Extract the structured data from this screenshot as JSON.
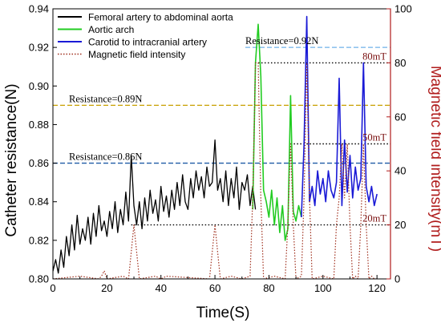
{
  "chart_data": {
    "type": "line",
    "xlabel": "Time(S)",
    "ylabel": "Catheter resistance(N)",
    "y2label": "Magnetic field intensity(mT)",
    "xlim": [
      0,
      125
    ],
    "ylim": [
      0.8,
      0.94
    ],
    "y2lim": [
      0,
      100
    ],
    "xticks": [
      "0",
      "20",
      "40",
      "60",
      "80",
      "100",
      "120"
    ],
    "yticks": [
      "0.80",
      "0.82",
      "0.84",
      "0.86",
      "0.88",
      "0.90",
      "0.92",
      "0.94"
    ],
    "y2ticks": [
      "0",
      "20",
      "40",
      "60",
      "80",
      "100"
    ],
    "legend_position": "top-left",
    "colors": {
      "femoral": "#000000",
      "aortic": "#22cc22",
      "carotid": "#1a1ad6",
      "magnetic": "#a0301e",
      "right_axis": "#b01c1c",
      "res086": "#1f5aa6",
      "res089": "#c8a000",
      "res092": "#6fb0e8"
    },
    "series": [
      {
        "name": "Femoral artery to abdominal aorta",
        "axis": "left",
        "x": [
          0,
          1,
          2,
          3,
          4,
          5,
          6,
          7,
          8,
          9,
          10,
          11,
          12,
          13,
          14,
          15,
          16,
          17,
          18,
          19,
          20,
          21,
          22,
          23,
          24,
          25,
          26,
          27,
          28,
          29,
          30,
          31,
          32,
          33,
          34,
          35,
          36,
          37,
          38,
          39,
          40,
          41,
          42,
          43,
          44,
          45,
          46,
          47,
          48,
          49,
          50,
          51,
          52,
          53,
          54,
          55,
          56,
          57,
          58,
          59,
          60,
          61,
          62,
          63,
          64,
          65,
          66,
          67,
          68,
          69,
          70,
          71,
          72,
          73,
          74,
          75
        ],
        "y": [
          0.804,
          0.81,
          0.803,
          0.815,
          0.806,
          0.822,
          0.812,
          0.828,
          0.815,
          0.833,
          0.818,
          0.826,
          0.82,
          0.832,
          0.818,
          0.834,
          0.822,
          0.838,
          0.825,
          0.83,
          0.822,
          0.835,
          0.826,
          0.84,
          0.824,
          0.836,
          0.828,
          0.845,
          0.83,
          0.864,
          0.838,
          0.828,
          0.84,
          0.826,
          0.842,
          0.83,
          0.846,
          0.834,
          0.841,
          0.83,
          0.848,
          0.835,
          0.843,
          0.832,
          0.846,
          0.836,
          0.85,
          0.838,
          0.854,
          0.84,
          0.836,
          0.852,
          0.842,
          0.856,
          0.846,
          0.853,
          0.842,
          0.858,
          0.848,
          0.85,
          0.872,
          0.846,
          0.852,
          0.84,
          0.856,
          0.838,
          0.852,
          0.842,
          0.858,
          0.836,
          0.85,
          0.846,
          0.854,
          0.838,
          0.848,
          0.836
        ]
      },
      {
        "name": "Aortic arch",
        "axis": "left",
        "x": [
          74,
          75,
          76,
          77,
          78,
          79,
          80,
          81,
          82,
          83,
          84,
          85,
          86,
          87,
          88,
          89,
          90,
          91,
          92
        ],
        "y": [
          0.836,
          0.912,
          0.932,
          0.905,
          0.846,
          0.84,
          0.832,
          0.846,
          0.828,
          0.842,
          0.824,
          0.838,
          0.82,
          0.826,
          0.895,
          0.835,
          0.83,
          0.838,
          0.832
        ]
      },
      {
        "name": "Carotid to intracranial artery",
        "axis": "left",
        "x": [
          92,
          93,
          94,
          95,
          96,
          97,
          98,
          99,
          100,
          101,
          102,
          103,
          104,
          105,
          106,
          107,
          108,
          109,
          110,
          111,
          112,
          113,
          114,
          115,
          116,
          117,
          118,
          119,
          120
        ],
        "y": [
          0.832,
          0.87,
          0.936,
          0.84,
          0.848,
          0.838,
          0.856,
          0.844,
          0.852,
          0.84,
          0.856,
          0.846,
          0.842,
          0.85,
          0.904,
          0.838,
          0.872,
          0.845,
          0.864,
          0.842,
          0.858,
          0.846,
          0.852,
          0.912,
          0.848,
          0.84,
          0.848,
          0.838,
          0.844
        ]
      },
      {
        "name": "Magnetic field intensity",
        "axis": "right",
        "x": [
          0,
          10,
          17,
          18,
          19,
          20,
          26,
          28,
          29,
          30,
          31,
          32,
          38,
          40,
          42,
          58,
          59,
          60,
          61,
          62,
          66,
          70,
          73,
          74,
          75,
          76,
          77,
          78,
          82,
          86,
          87,
          88,
          89,
          90,
          92,
          93,
          94,
          95,
          96,
          100,
          104,
          105,
          106,
          107,
          108,
          109,
          110,
          111,
          112,
          113,
          114,
          115,
          116,
          117,
          118,
          119,
          120
        ],
        "y": [
          0,
          1,
          0,
          1,
          3,
          0,
          1,
          0,
          10,
          20,
          10,
          0,
          1,
          0,
          1,
          0,
          10,
          20,
          10,
          0,
          1,
          0,
          1,
          30,
          80,
          80,
          30,
          0,
          1,
          0,
          20,
          50,
          20,
          0,
          1,
          30,
          80,
          30,
          0,
          1,
          0,
          20,
          30,
          50,
          30,
          50,
          20,
          0,
          1,
          0,
          20,
          50,
          20,
          0,
          1,
          0,
          0
        ]
      }
    ],
    "reference_lines": [
      {
        "label": "Resistance=0.86N",
        "value": 0.86
      },
      {
        "label": "Resistance=0.89N",
        "value": 0.89
      },
      {
        "label": "Resistance=0.92N",
        "value": 0.92
      }
    ],
    "field_markers": [
      {
        "label": "80mT",
        "value": 80,
        "from_x": 76,
        "to_x": 120
      },
      {
        "label": "50mT",
        "value": 50,
        "from_x": 88,
        "to_x": 120
      },
      {
        "label": "20mT",
        "value": 20,
        "from_x": 29,
        "to_x": 120
      }
    ]
  }
}
